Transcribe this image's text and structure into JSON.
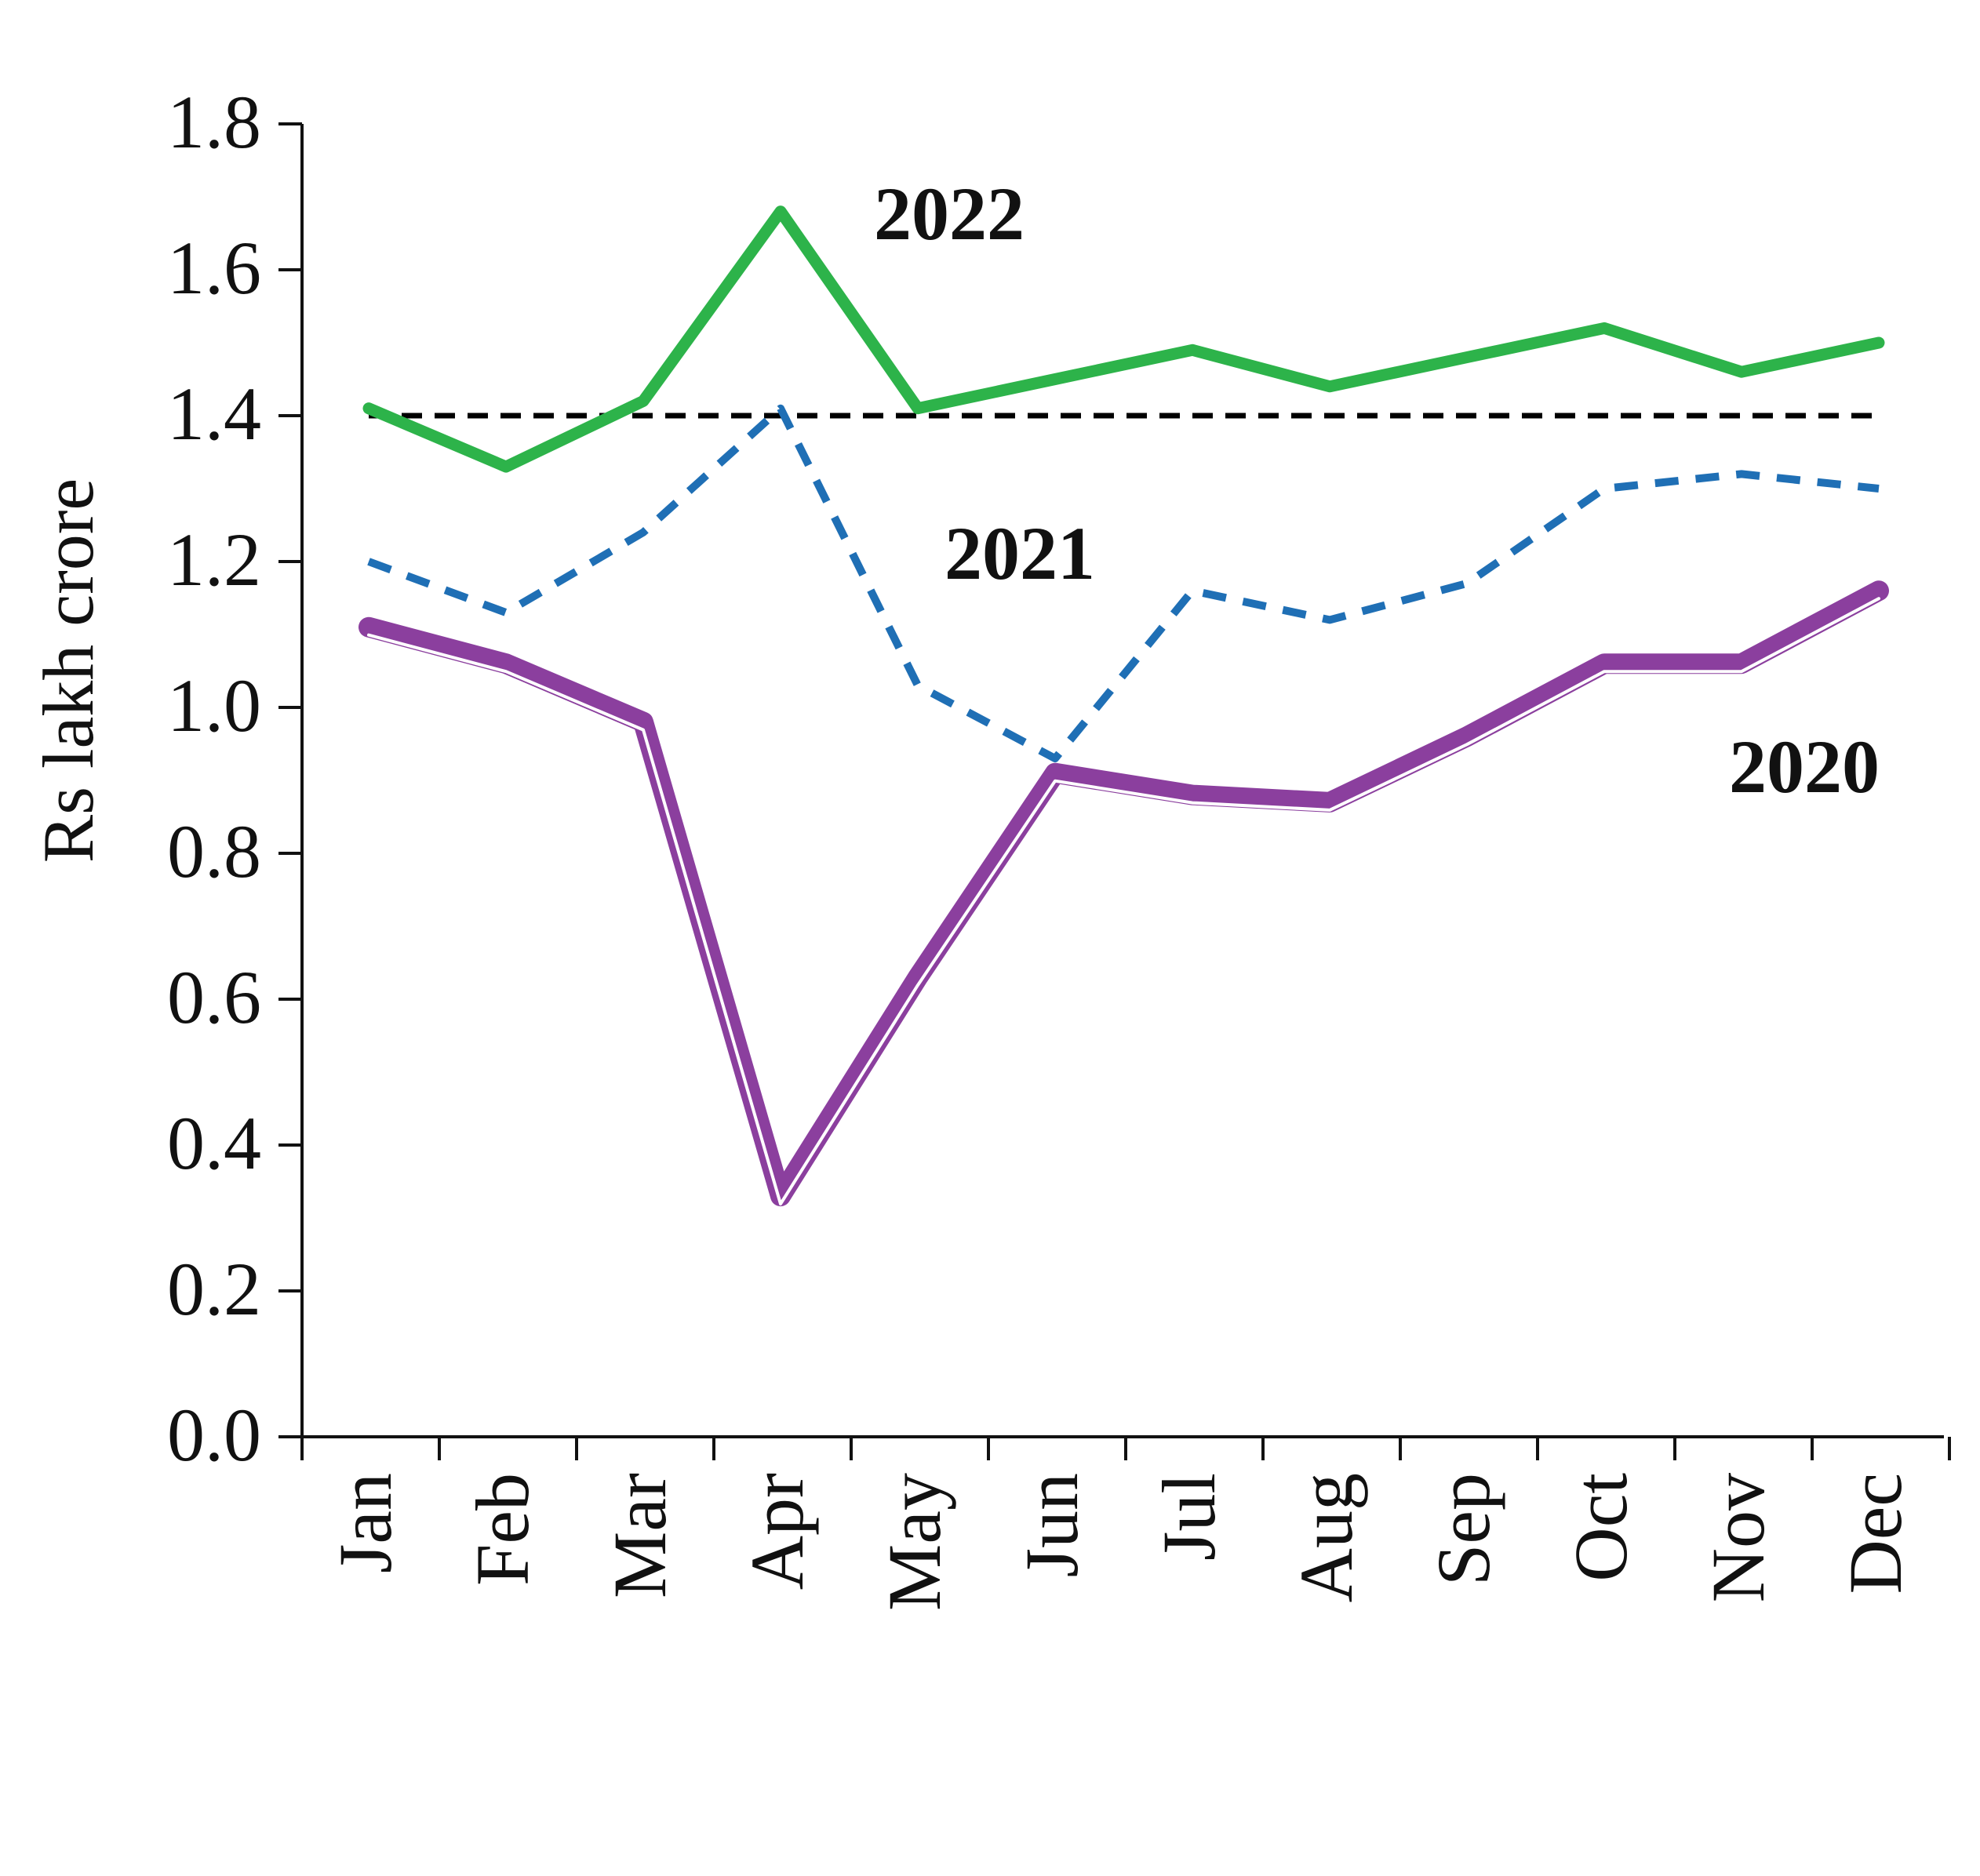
{
  "chart_data": {
    "type": "line",
    "title": "",
    "xlabel": "",
    "ylabel": "Rs lakh crore",
    "ylim": [
      0.0,
      1.8
    ],
    "yticks": [
      "0.0",
      "0.2",
      "0.4",
      "0.6",
      "0.8",
      "1.0",
      "1.2",
      "1.4",
      "1.6",
      "1.8"
    ],
    "categories": [
      "Jan",
      "Feb",
      "Mar",
      "Apr",
      "May",
      "Jun",
      "Jul",
      "Aug",
      "Sep",
      "Oct",
      "Nov",
      "Dec"
    ],
    "grid": false,
    "legend": "none",
    "series": [
      {
        "name": "2022",
        "style": "solid",
        "color": "#2db34a",
        "values": [
          1.41,
          1.33,
          1.42,
          1.68,
          1.41,
          1.45,
          1.49,
          1.44,
          1.48,
          1.52,
          1.46,
          1.5
        ]
      },
      {
        "name": "2021",
        "style": "dashed",
        "color": "#1f6fb5",
        "values": [
          1.2,
          1.13,
          1.24,
          1.41,
          1.03,
          0.93,
          1.16,
          1.12,
          1.17,
          1.3,
          1.32,
          1.3
        ]
      },
      {
        "name": "2020",
        "style": "double",
        "color": "#8b3f9e",
        "values": [
          1.11,
          1.06,
          0.98,
          0.33,
          0.63,
          0.91,
          0.88,
          0.87,
          0.96,
          1.06,
          1.06,
          1.16
        ]
      }
    ],
    "reference_line": {
      "value": 1.4,
      "style": "dashed",
      "color": "#000000"
    },
    "annotations": [
      {
        "text": "2022",
        "series": "2022"
      },
      {
        "text": "2021",
        "series": "2021"
      },
      {
        "text": "2020",
        "series": "2020"
      }
    ]
  }
}
